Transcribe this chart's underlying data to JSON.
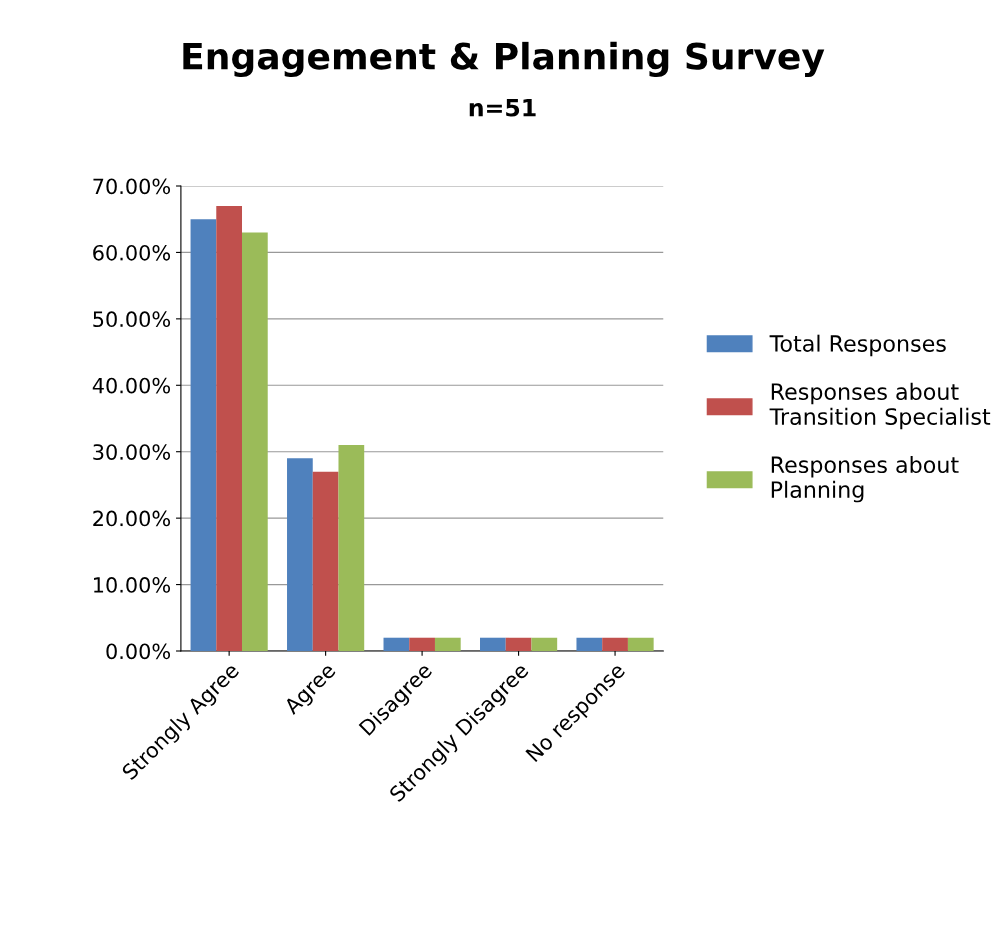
{
  "chart_data": {
    "type": "bar",
    "title": "Engagement & Planning Survey",
    "subtitle": "n=51",
    "categories": [
      "Strongly Agree",
      "Agree",
      "Disagree",
      "Strongly Disagree",
      "No response"
    ],
    "series": [
      {
        "name": "Total Responses",
        "color": "#4f81bd",
        "values": [
          65,
          29,
          2,
          2,
          2
        ]
      },
      {
        "name": "Responses about\nTransition Specialist",
        "color": "#c0504d",
        "values": [
          67,
          27,
          2,
          2,
          2
        ]
      },
      {
        "name": "Responses about\nPlanning",
        "color": "#9bbb59",
        "values": [
          63,
          31,
          2,
          2,
          2
        ]
      }
    ],
    "ylim": [
      0,
      70
    ],
    "yticks": [
      {
        "value": 0,
        "label": "0.00%"
      },
      {
        "value": 10,
        "label": "10.00%"
      },
      {
        "value": 20,
        "label": "20.00%"
      },
      {
        "value": 30,
        "label": "30.00%"
      },
      {
        "value": 40,
        "label": "40.00%"
      },
      {
        "value": 50,
        "label": "50.00%"
      },
      {
        "value": 60,
        "label": "60.00%"
      },
      {
        "value": 70,
        "label": "70.00%"
      }
    ],
    "grid": "y",
    "legend": "right"
  }
}
